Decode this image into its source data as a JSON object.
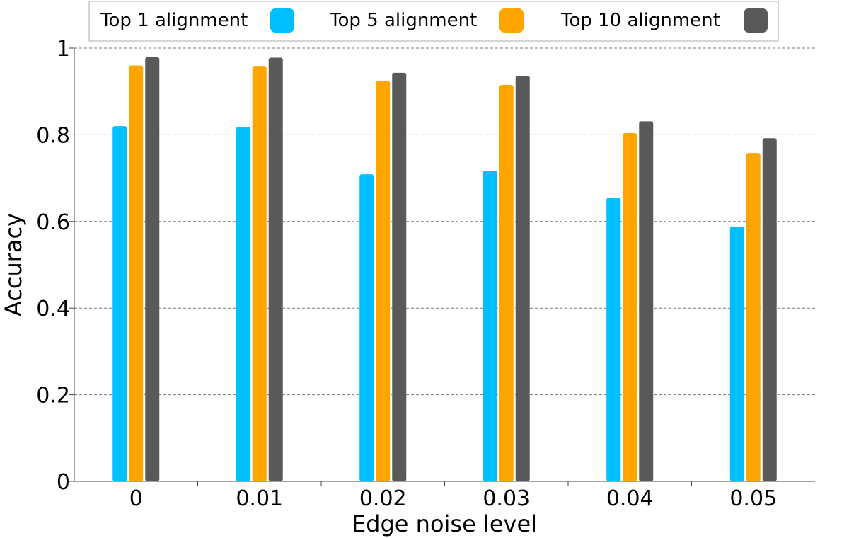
{
  "chart_data": {
    "type": "bar",
    "xlabel": "Edge noise level",
    "ylabel": "Accuracy",
    "categories": [
      "0",
      "0.01",
      "0.02",
      "0.03",
      "0.04",
      "0.05"
    ],
    "y_ticks": [
      "0",
      "0.2",
      "0.4",
      "0.6",
      "0.8",
      "1"
    ],
    "ylim": [
      0,
      1
    ],
    "grid": "horizontal-dashed",
    "legend_position": "top",
    "series": [
      {
        "name": "Top 1 alignment",
        "color": "#00bfff",
        "values": [
          0.82,
          0.818,
          0.709,
          0.717,
          0.655,
          0.588
        ]
      },
      {
        "name": "Top 5 alignment",
        "color": "#ffa500",
        "values": [
          0.96,
          0.959,
          0.924,
          0.915,
          0.804,
          0.758
        ]
      },
      {
        "name": "Top 10 alignment",
        "color": "#595959",
        "values": [
          0.979,
          0.978,
          0.943,
          0.936,
          0.831,
          0.792
        ]
      }
    ]
  }
}
